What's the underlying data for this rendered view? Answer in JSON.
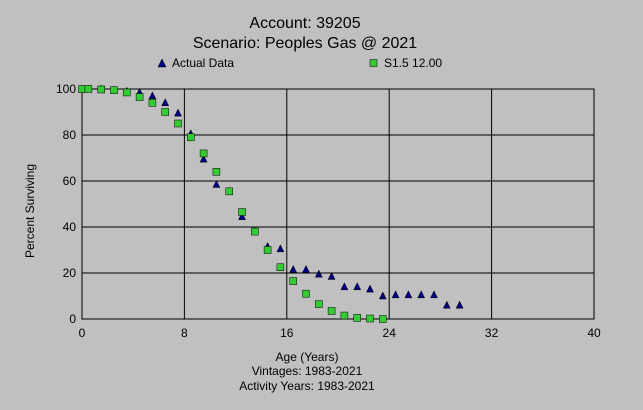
{
  "chart_data": {
    "type": "scatter",
    "title": "Account: 39205",
    "subtitle": "Scenario: Peoples Gas @ 2021",
    "xlabel": "Age (Years)",
    "ylabel": "Percent Surviving",
    "footer_lines": [
      "Vintages: 1983-2021",
      "Activity Years: 1983-2021"
    ],
    "xlim": [
      0,
      40
    ],
    "ylim": [
      0,
      100
    ],
    "xticks": [
      "0",
      "8",
      "16",
      "24",
      "32",
      "40"
    ],
    "yticks": [
      "0",
      "20",
      "40",
      "60",
      "80",
      "100"
    ],
    "grid": true,
    "legend_position": "top",
    "series": [
      {
        "name": "Actual Data",
        "marker": "triangle",
        "color": "#000080",
        "points": [
          [
            0,
            100
          ],
          [
            0.5,
            100
          ],
          [
            1.5,
            100
          ],
          [
            2.5,
            99.5
          ],
          [
            3.5,
            99
          ],
          [
            4.5,
            98.5
          ],
          [
            5.5,
            97
          ],
          [
            6.5,
            94
          ],
          [
            7.5,
            89.5
          ],
          [
            8.5,
            80.5
          ],
          [
            9.5,
            69.5
          ],
          [
            10.5,
            58.5
          ],
          [
            11.5,
            55.5
          ],
          [
            12.5,
            44.5
          ],
          [
            13.5,
            38
          ],
          [
            14.5,
            31.5
          ],
          [
            15.5,
            30.5
          ],
          [
            16.5,
            21.5
          ],
          [
            17.5,
            21.5
          ],
          [
            18.5,
            19.5
          ],
          [
            19.5,
            18.5
          ],
          [
            20.5,
            14
          ],
          [
            21.5,
            14
          ],
          [
            22.5,
            13
          ],
          [
            23.5,
            10
          ],
          [
            24.5,
            10.5
          ],
          [
            25.5,
            10.5
          ],
          [
            26.5,
            10.5
          ],
          [
            27.5,
            10.5
          ],
          [
            28.5,
            6
          ],
          [
            29.5,
            6
          ]
        ]
      },
      {
        "name": "S1.5 12.00",
        "marker": "square",
        "color": "#33cc33",
        "points": [
          [
            0,
            100
          ],
          [
            0.5,
            100
          ],
          [
            1.5,
            99.8
          ],
          [
            2.5,
            99.5
          ],
          [
            3.5,
            98.5
          ],
          [
            4.5,
            96.5
          ],
          [
            5.5,
            94
          ],
          [
            6.5,
            90
          ],
          [
            7.5,
            85
          ],
          [
            8.5,
            79
          ],
          [
            9.5,
            72
          ],
          [
            10.5,
            64
          ],
          [
            11.5,
            55.5
          ],
          [
            12.5,
            46.5
          ],
          [
            13.5,
            38
          ],
          [
            14.5,
            30
          ],
          [
            15.5,
            22.5
          ],
          [
            16.5,
            16.5
          ],
          [
            17.5,
            11
          ],
          [
            18.5,
            6.5
          ],
          [
            19.5,
            3.5
          ],
          [
            20.5,
            1.5
          ],
          [
            21.5,
            0.5
          ],
          [
            22.5,
            0.2
          ],
          [
            23.5,
            0
          ]
        ]
      }
    ]
  }
}
